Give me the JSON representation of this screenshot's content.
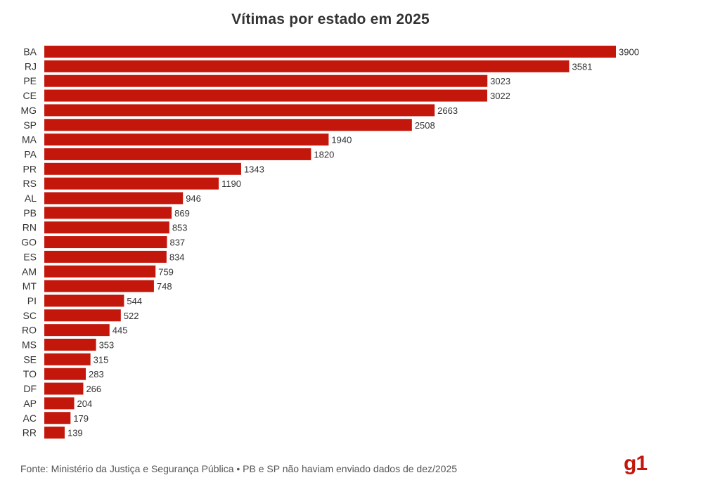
{
  "chart_data": {
    "type": "bar",
    "orientation": "horizontal",
    "title": "Vítimas por estado em 2025",
    "xlabel": "",
    "ylabel": "",
    "categories": [
      "BA",
      "RJ",
      "PE",
      "CE",
      "MG",
      "SP",
      "MA",
      "PA",
      "PR",
      "RS",
      "AL",
      "PB",
      "RN",
      "GO",
      "ES",
      "AM",
      "MT",
      "PI",
      "SC",
      "RO",
      "MS",
      "SE",
      "TO",
      "DF",
      "AP",
      "AC",
      "RR"
    ],
    "values": [
      3900,
      3581,
      3023,
      3022,
      2663,
      2508,
      1940,
      1820,
      1343,
      1190,
      946,
      869,
      853,
      837,
      834,
      759,
      748,
      544,
      522,
      445,
      353,
      315,
      283,
      266,
      204,
      179,
      139
    ],
    "xlim": [
      0,
      3900
    ],
    "grid": false,
    "legend": "none",
    "bar_color": "#c4170c",
    "data_labels": true
  },
  "footer": {
    "source": "Fonte: Ministério da Justiça e Segurança Pública • PB e SP não haviam enviado dados de dez/2025",
    "logo_text": "g1",
    "logo_color": "#c4170c"
  }
}
